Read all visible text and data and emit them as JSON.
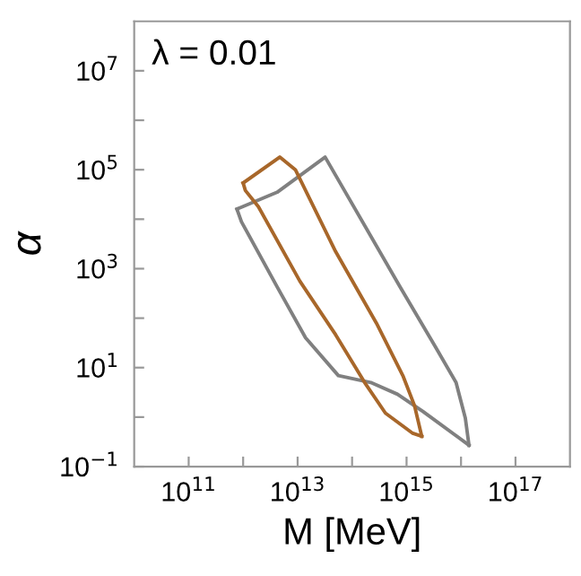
{
  "chart_data": {
    "type": "line",
    "xlabel": "M [MeV]",
    "ylabel": "α",
    "log": "xy",
    "grid": false,
    "legend": false,
    "marker": "none",
    "line_style": "solid",
    "annotations": [
      "λ = 0.01"
    ],
    "xlim": [
      10000000000.0,
      1e+18
    ],
    "ylim": [
      0.1,
      100000000.0
    ],
    "xticks": [
      {
        "value": 100000000000.0,
        "label": "10$^{11}$"
      },
      {
        "value": 1000000000000.0,
        "label": null
      },
      {
        "value": 10000000000000.0,
        "label": "10$^{13}$"
      },
      {
        "value": 100000000000000.0,
        "label": null
      },
      {
        "value": 1000000000000000.0,
        "label": "10$^{15}$"
      },
      {
        "value": 1e+16,
        "label": null
      },
      {
        "value": 1e+17,
        "label": "10$^{17}$"
      }
    ],
    "yticks": [
      {
        "value": 0.1,
        "label": "10$^{−1}$"
      },
      {
        "value": 1,
        "label": null
      },
      {
        "value": 10,
        "label": "10$^{1}$"
      },
      {
        "value": 100,
        "label": null
      },
      {
        "value": 1000,
        "label": "10$^{3}$"
      },
      {
        "value": 10000,
        "label": null
      },
      {
        "value": 100000,
        "label": "10$^{5}$"
      },
      {
        "value": 1000000,
        "label": null
      },
      {
        "value": 10000000,
        "label": "10$^{7}$"
      }
    ],
    "series": [
      {
        "color": "#808080",
        "x": [
          770000000000.0,
          4200000000000.0,
          32000000000000.0,
          760000000000000.0,
          3400000000000000.0,
          8100000000000000.0,
          1.2e+16,
          1.4e+16
        ],
        "values": [
          16000.0,
          35000.0,
          180000.0,
          430,
          26,
          5.0,
          0.95,
          0.27
        ]
      },
      {
        "color": "#808080",
        "x": [
          770000000000.0,
          930000000000.0,
          4200000000000.0,
          14000000000000.0,
          56000000000000.0,
          220000000000000.0,
          680000000000000.0,
          2000000000000000.0,
          1.4e+16
        ],
        "values": [
          16000.0,
          8900,
          430,
          40,
          6.9,
          5.0,
          2.9,
          1.3,
          0.27
        ]
      },
      {
        "color": "#a8672a",
        "x": [
          1000000000000.0,
          4700000000000.0,
          9100000000000.0,
          50000000000000.0,
          280000000000000.0,
          870000000000000.0,
          1400000000000000.0,
          1900000000000000.0
        ],
        "values": [
          54000.0,
          180000.0,
          100000.0,
          2200,
          79,
          6.6,
          1.7,
          0.41
        ]
      },
      {
        "color": "#a8672a",
        "x": [
          1000000000000.0,
          1100000000000.0,
          1900000000000.0,
          11000000000000.0,
          50000000000000.0,
          170000000000000.0,
          410000000000000.0,
          1300000000000000.0,
          1900000000000000.0
        ],
        "values": [
          54000.0,
          38000.0,
          18000.0,
          560,
          46,
          5.0,
          1.2,
          0.47,
          0.41
        ]
      }
    ]
  }
}
